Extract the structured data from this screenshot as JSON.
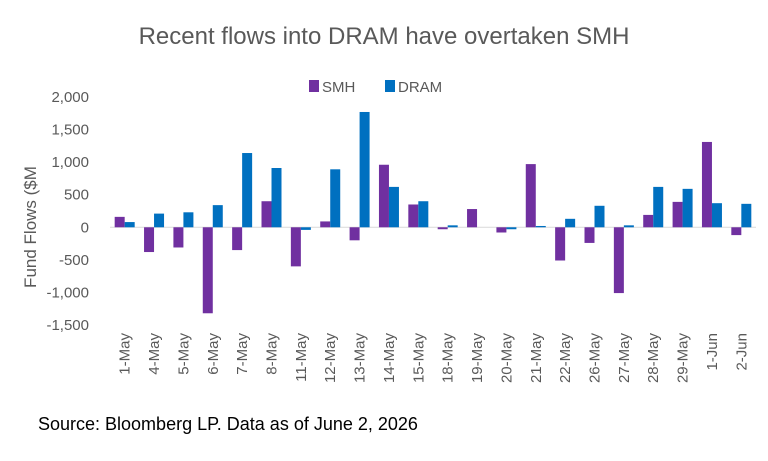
{
  "chart_data": {
    "type": "bar",
    "title": "Recent flows into DRAM have overtaken SMH",
    "ylabel": "Fund Flows ($M",
    "xlabel": "",
    "ylim": [
      -1500,
      2000
    ],
    "yticks": [
      2000,
      1500,
      1000,
      500,
      0,
      -500,
      -1000,
      -1500
    ],
    "ytick_labels": [
      "2,000",
      "1,500",
      "1,000",
      "500",
      "0",
      "-500",
      "-1,000",
      "-1,500"
    ],
    "grid": false,
    "legend_position": "top",
    "categories": [
      "1-May",
      "4-May",
      "5-May",
      "6-May",
      "7-May",
      "8-May",
      "11-May",
      "12-May",
      "13-May",
      "14-May",
      "15-May",
      "18-May",
      "19-May",
      "20-May",
      "21-May",
      "22-May",
      "26-May",
      "27-May",
      "28-May",
      "29-May",
      "1-Jun",
      "2-Jun"
    ],
    "series": [
      {
        "name": "SMH",
        "color": "#7030A0",
        "values": [
          160,
          -380,
          -310,
          -1320,
          -350,
          400,
          -600,
          90,
          -200,
          960,
          350,
          -30,
          280,
          -80,
          970,
          -510,
          -240,
          -1010,
          190,
          390,
          1310,
          -120
        ]
      },
      {
        "name": "DRAM",
        "color": "#0070C0",
        "values": [
          80,
          210,
          230,
          340,
          1140,
          910,
          -40,
          890,
          1770,
          620,
          400,
          30,
          0,
          -30,
          20,
          130,
          330,
          30,
          620,
          590,
          370,
          360
        ]
      }
    ]
  },
  "source_note": "Source: Bloomberg LP. Data as of June 2, 2026"
}
